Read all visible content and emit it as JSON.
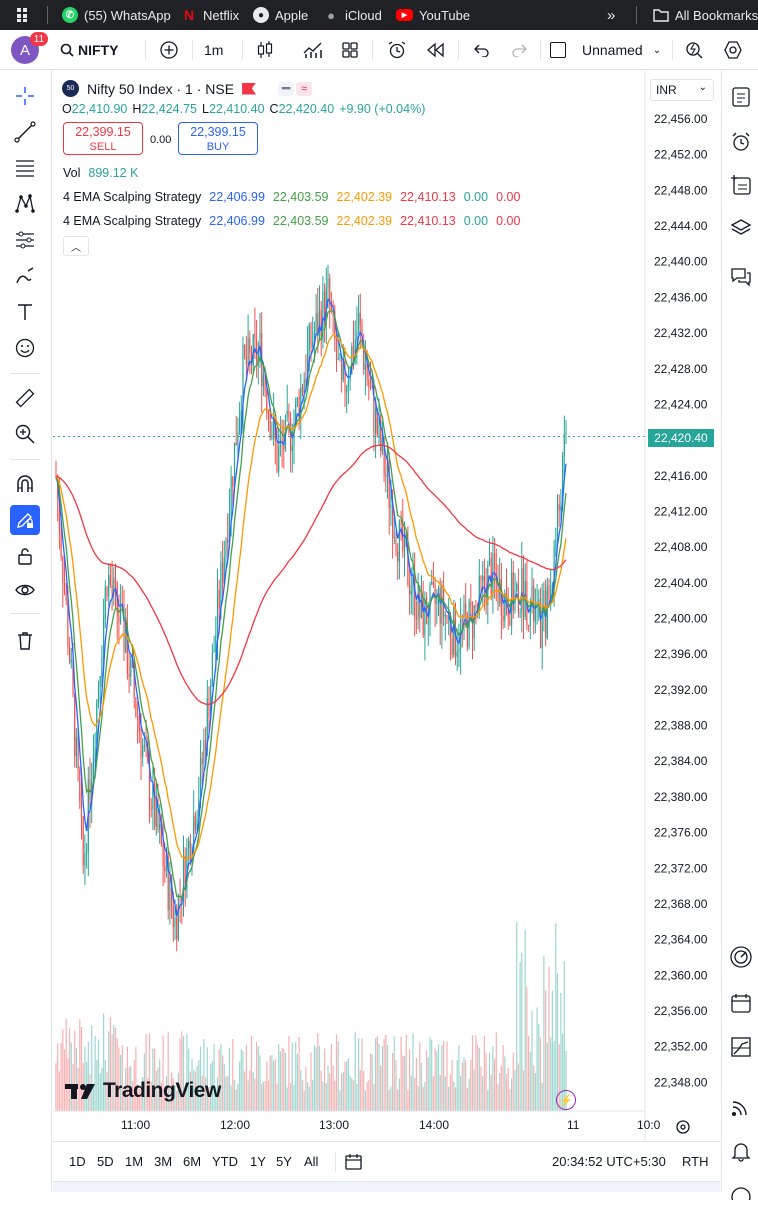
{
  "bookmarks_bar": {
    "items": [
      {
        "label": "(55) WhatsApp",
        "icon": "whatsapp-icon"
      },
      {
        "label": "Netflix",
        "icon": "netflix-icon"
      },
      {
        "label": "Apple",
        "icon": "apple-icon"
      },
      {
        "label": "iCloud",
        "icon": "apple-icon"
      },
      {
        "label": "YouTube",
        "icon": "youtube-icon"
      }
    ],
    "all_bookmarks": "All Bookmarks"
  },
  "toolbar": {
    "avatar_letter": "A",
    "notifications": "11",
    "symbol": "NIFTY",
    "interval": "1m",
    "layout_name": "Unnamed"
  },
  "legend": {
    "title": "Nifty 50 Index · 1 · NSE",
    "exchange_badge": "50",
    "ohlc": {
      "o_label": "O",
      "o": "22,410.90",
      "h_label": "H",
      "h": "22,424.75",
      "l_label": "L",
      "l": "22,410.40",
      "c_label": "C",
      "c": "22,420.40",
      "change": "+9.90 (+0.04%)"
    },
    "sell_price": "22,399.15",
    "sell_label": "SELL",
    "spread": "0.00",
    "buy_price": "22,399.15",
    "buy_label": "BUY",
    "volume_label": "Vol",
    "volume": "899.12 K",
    "indicators": [
      {
        "name": "4 EMA Scalping Strategy",
        "v1": "22,406.99",
        "v2": "22,403.59",
        "v3": "22,402.39",
        "v4": "22,410.13",
        "v5": "0.00",
        "v6": "0.00"
      },
      {
        "name": "4 EMA Scalping Strategy",
        "v1": "22,406.99",
        "v2": "22,403.59",
        "v3": "22,402.39",
        "v4": "22,410.13",
        "v5": "0.00",
        "v6": "0.00"
      }
    ]
  },
  "price_axis": {
    "currency": "INR",
    "ticks": [
      "22,456.00",
      "22,452.00",
      "22,448.00",
      "22,444.00",
      "22,440.00",
      "22,436.00",
      "22,432.00",
      "22,428.00",
      "22,424.00",
      "22,420.00",
      "22,416.00",
      "22,412.00",
      "22,408.00",
      "22,404.00",
      "22,400.00",
      "22,396.00",
      "22,392.00",
      "22,388.00",
      "22,384.00",
      "22,380.00",
      "22,376.00",
      "22,372.00",
      "22,368.00",
      "22,364.00",
      "22,360.00",
      "22,356.00",
      "22,352.00",
      "22,348.00"
    ],
    "current_price": "22,420.40"
  },
  "time_axis": {
    "ticks": [
      "11:00",
      "12:00",
      "13:00",
      "14:00",
      "11",
      "10:0"
    ]
  },
  "watermark": "TradingView",
  "bottom_bar": {
    "ranges": [
      "1D",
      "5D",
      "1M",
      "3M",
      "6M",
      "YTD",
      "1Y",
      "5Y",
      "All"
    ],
    "clock": "20:34:52 UTC+5:30",
    "session": "RTH"
  },
  "colors": {
    "up": "#26a69a",
    "down": "#ef5350",
    "ema_blue": "#2962ff",
    "ema_green": "#43a047",
    "ema_orange": "#ff9800",
    "ema_red": "#f23645",
    "accent": "#2962ff"
  },
  "chart_data": {
    "type": "candlestick",
    "series": [
      {
        "name": "Nifty 50 Index",
        "approx_path": [
          [
            0,
            22416
          ],
          [
            8,
            22396
          ],
          [
            16,
            22372
          ],
          [
            30,
            22405
          ],
          [
            40,
            22398
          ],
          [
            55,
            22381
          ],
          [
            70,
            22366
          ],
          [
            85,
            22382
          ],
          [
            110,
            22428
          ],
          [
            120,
            22430
          ],
          [
            130,
            22418
          ],
          [
            140,
            22422
          ],
          [
            150,
            22431
          ],
          [
            160,
            22436
          ],
          [
            168,
            22425
          ],
          [
            178,
            22433
          ],
          [
            185,
            22425
          ],
          [
            200,
            22410
          ],
          [
            215,
            22400
          ],
          [
            225,
            22402
          ],
          [
            235,
            22398
          ],
          [
            245,
            22400
          ],
          [
            255,
            22405
          ],
          [
            265,
            22402
          ],
          [
            275,
            22403
          ],
          [
            285,
            22399
          ],
          [
            290,
            22402
          ],
          [
            300,
            22420
          ]
        ]
      }
    ],
    "ylim": [
      22346,
      22458
    ]
  }
}
